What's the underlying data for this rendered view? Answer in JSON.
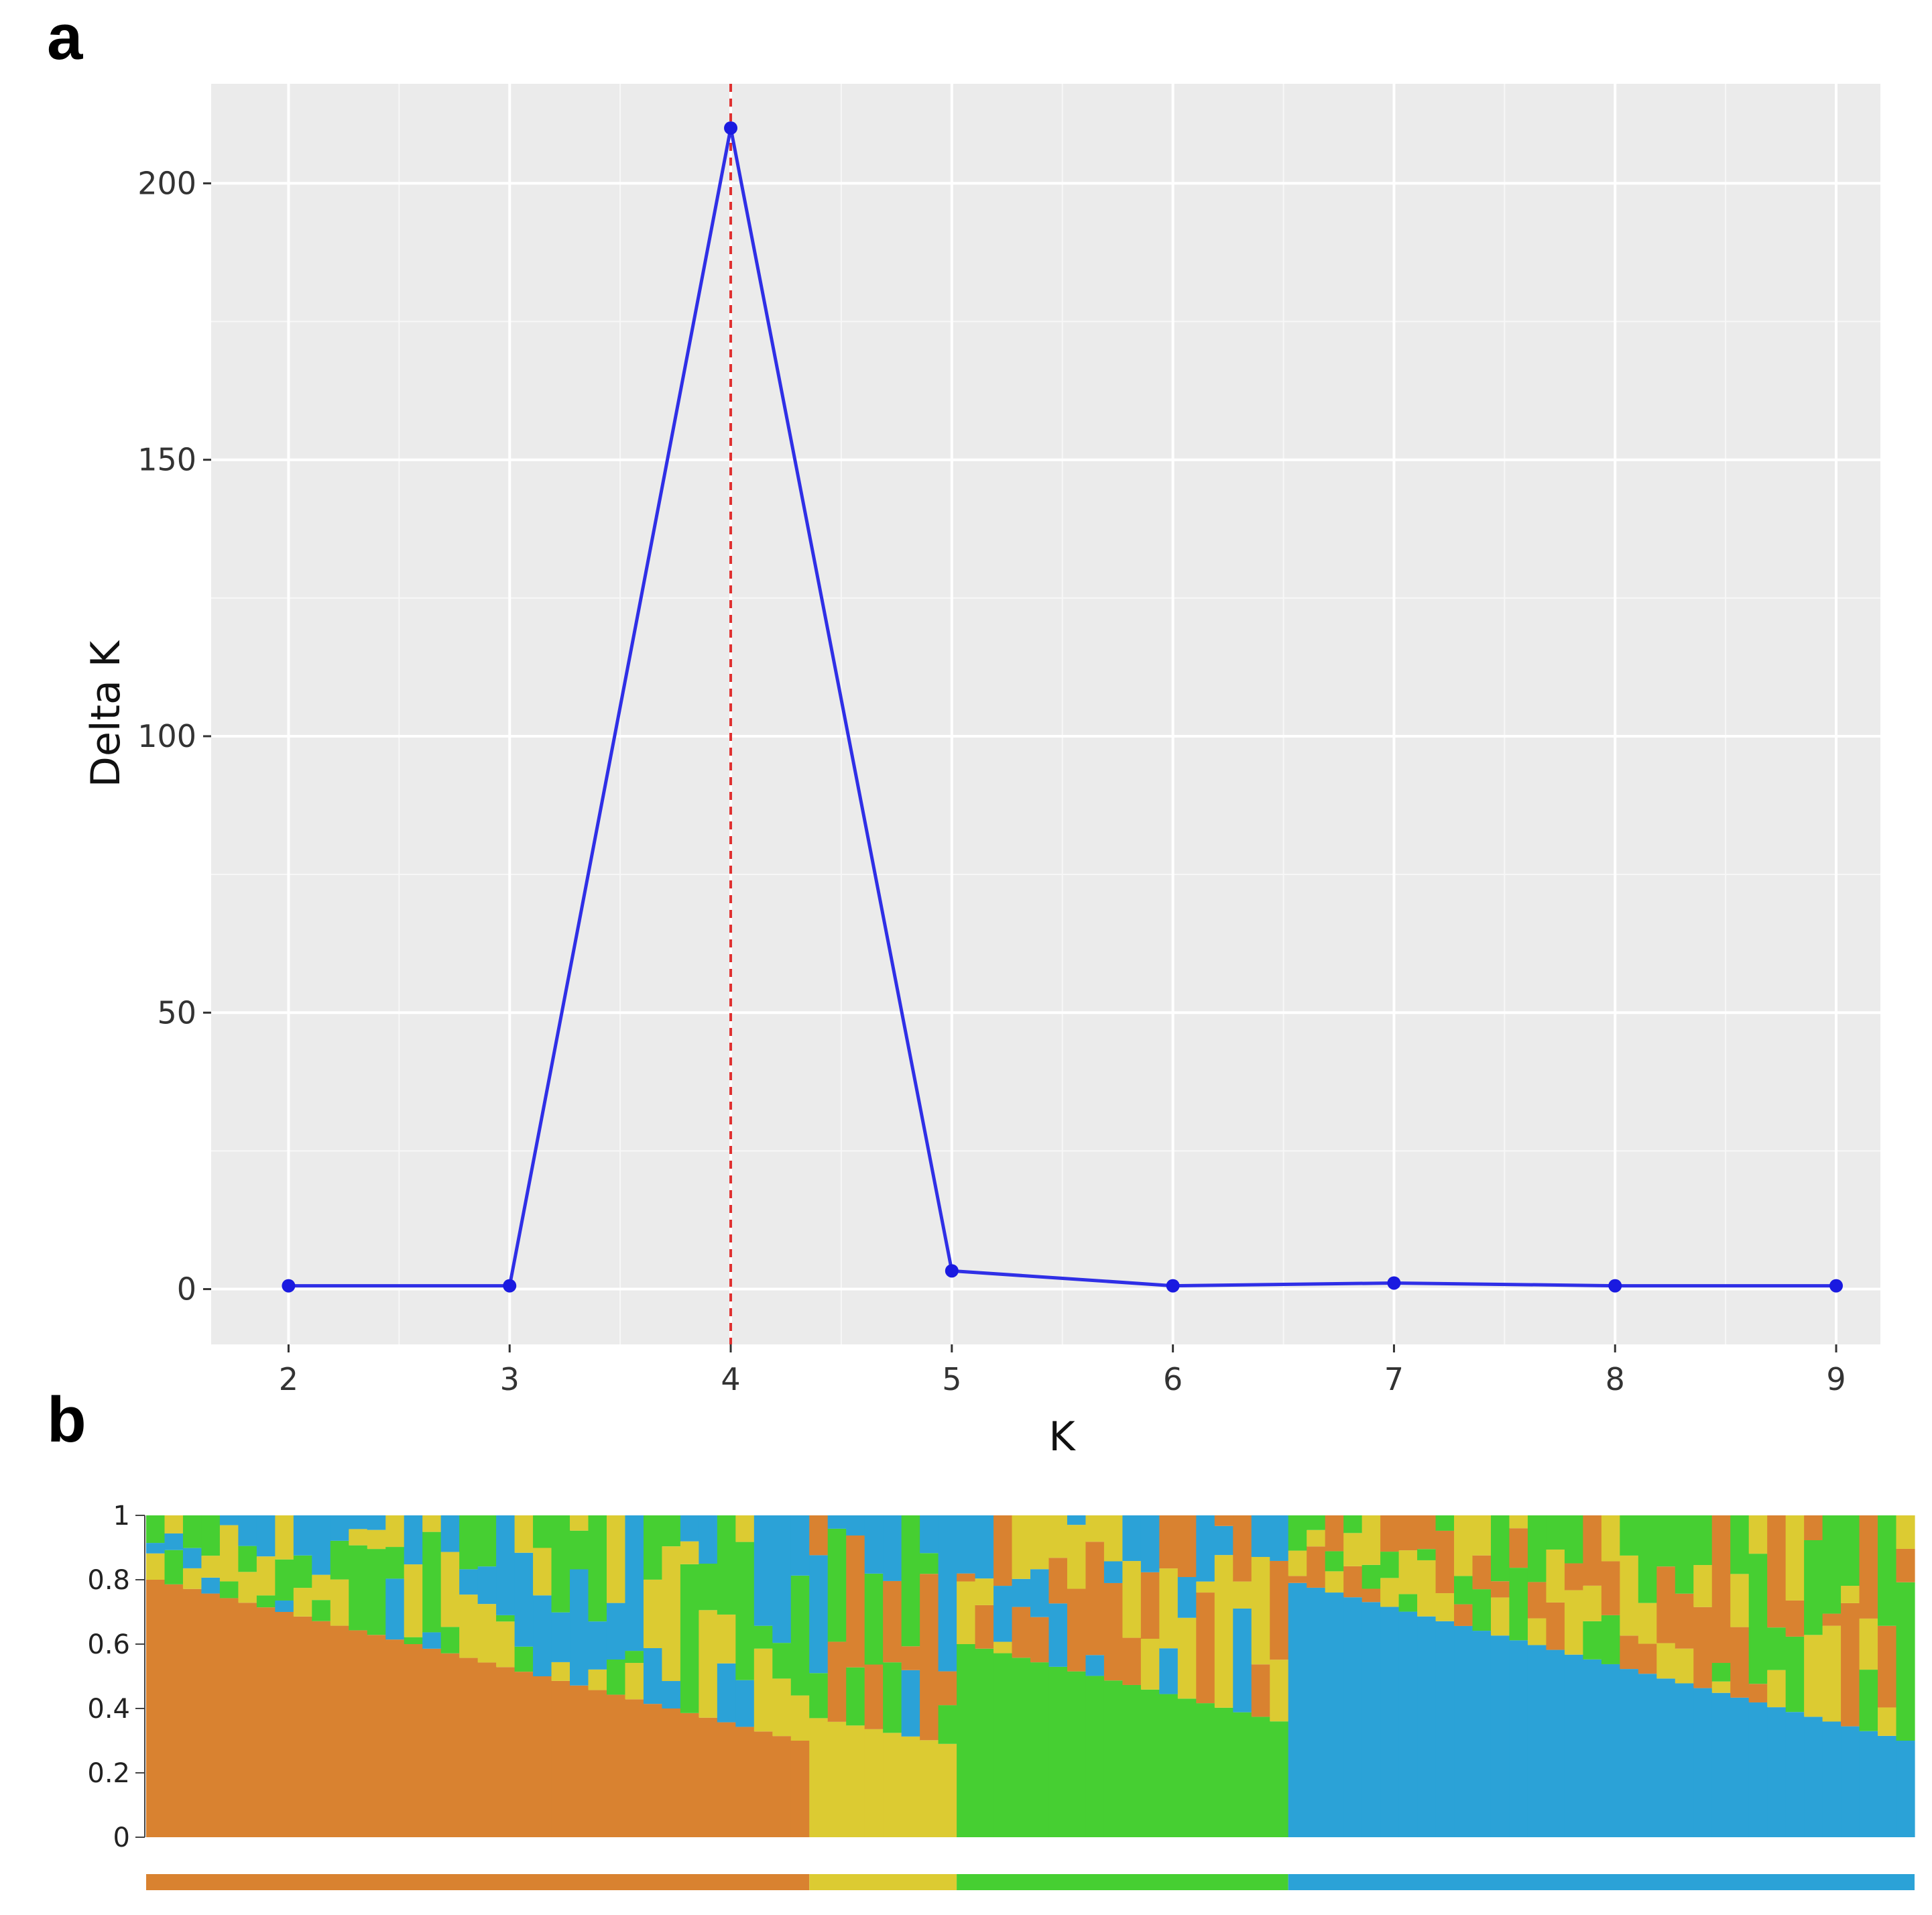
{
  "panels": {
    "a": "a",
    "b": "b"
  },
  "chart_data": [
    {
      "type": "line",
      "panel": "a",
      "title": "",
      "xlabel": "K",
      "ylabel": "Delta K",
      "xlim": [
        1.65,
        9.2
      ],
      "ylim": [
        -10,
        218
      ],
      "x_ticks": [
        2,
        3,
        4,
        5,
        6,
        7,
        8,
        9
      ],
      "y_ticks": [
        0,
        50,
        100,
        150,
        200
      ],
      "grid": true,
      "background_color": "#ebebeb",
      "series_color": "#2f2fe6",
      "x": [
        2,
        3,
        4,
        5,
        6,
        7,
        8,
        9
      ],
      "y": [
        0.6,
        0.6,
        210,
        3.3,
        0.6,
        1.1,
        0.6,
        0.6
      ],
      "reference_line": {
        "x": 4,
        "style": "dashed",
        "color": "#e03030"
      }
    },
    {
      "type": "bar",
      "panel": "b",
      "stacked": true,
      "title": "",
      "xlabel": "",
      "ylabel": "",
      "ylim": [
        0,
        1
      ],
      "y_ticks": [
        "0",
        "0.2",
        "0.4",
        "0.6",
        "0.8",
        "1"
      ],
      "cluster_colors": [
        "#d98230",
        "#dccb32",
        "#46cf32",
        "#2ba2d7"
      ],
      "group_bar": [
        {
          "color": "#d98230",
          "count": 36
        },
        {
          "color": "#dccb32",
          "count": 8
        },
        {
          "color": "#46cf32",
          "count": 18
        },
        {
          "color": "#2ba2d7",
          "count": 34
        }
      ],
      "segments": [
        {
          "name": "orange-cluster",
          "count": 36,
          "primary": 0,
          "start": 0.8,
          "end": 0.3
        },
        {
          "name": "yellow-cluster",
          "count": 8,
          "primary": 1,
          "start": 0.37,
          "end": 0.29
        },
        {
          "name": "green-cluster",
          "count": 18,
          "primary": 2,
          "start": 0.6,
          "end": 0.36
        },
        {
          "name": "blue-cluster",
          "count": 34,
          "primary": 3,
          "start": 0.79,
          "end": 0.3
        }
      ]
    }
  ]
}
